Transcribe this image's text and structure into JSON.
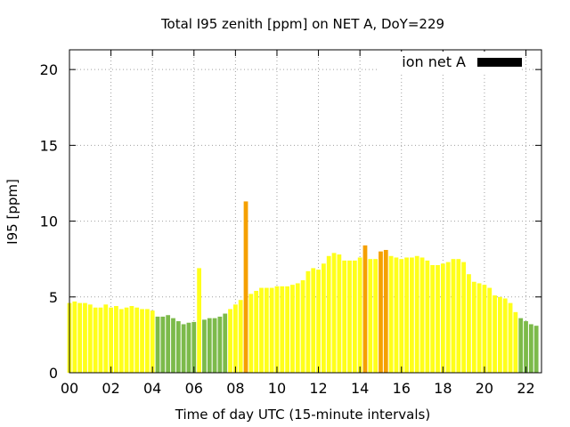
{
  "chart_data": {
    "type": "bar",
    "title": "Total I95 zenith [ppm] on NET A, DoY=229",
    "xlabel": "Time of day UTC (15-minute intervals)",
    "ylabel": "I95 [ppm]",
    "ylim": [
      0,
      21.3
    ],
    "xlim": [
      0,
      22.75
    ],
    "grid": true,
    "legend": {
      "placement": "top-right",
      "entries": [
        {
          "label": "ion net A",
          "color": "#000000"
        }
      ]
    },
    "x_ticks": [
      {
        "value": 0,
        "label": "00"
      },
      {
        "value": 2,
        "label": "02"
      },
      {
        "value": 4,
        "label": "04"
      },
      {
        "value": 6,
        "label": "06"
      },
      {
        "value": 8,
        "label": "08"
      },
      {
        "value": 10,
        "label": "10"
      },
      {
        "value": 12,
        "label": "12"
      },
      {
        "value": 14,
        "label": "14"
      },
      {
        "value": 16,
        "label": "16"
      },
      {
        "value": 18,
        "label": "18"
      },
      {
        "value": 20,
        "label": "20"
      },
      {
        "value": 22,
        "label": "22"
      }
    ],
    "y_ticks": [
      {
        "value": 0,
        "label": "0"
      },
      {
        "value": 5,
        "label": "5"
      },
      {
        "value": 10,
        "label": "10"
      },
      {
        "value": 15,
        "label": "15"
      },
      {
        "value": 20,
        "label": "20"
      }
    ],
    "interval_hours": 0.25,
    "colors": {
      "green": "#7cba4a",
      "yellow": "#ffff1a",
      "orange": "#f5a000"
    },
    "bars": [
      {
        "x": 0.0,
        "value": 4.6,
        "level": "yellow"
      },
      {
        "x": 0.25,
        "value": 4.7,
        "level": "yellow"
      },
      {
        "x": 0.5,
        "value": 4.6,
        "level": "yellow"
      },
      {
        "x": 0.75,
        "value": 4.6,
        "level": "yellow"
      },
      {
        "x": 1.0,
        "value": 4.5,
        "level": "yellow"
      },
      {
        "x": 1.25,
        "value": 4.3,
        "level": "yellow"
      },
      {
        "x": 1.5,
        "value": 4.3,
        "level": "yellow"
      },
      {
        "x": 1.75,
        "value": 4.5,
        "level": "yellow"
      },
      {
        "x": 2.0,
        "value": 4.3,
        "level": "yellow"
      },
      {
        "x": 2.25,
        "value": 4.4,
        "level": "yellow"
      },
      {
        "x": 2.5,
        "value": 4.2,
        "level": "yellow"
      },
      {
        "x": 2.75,
        "value": 4.3,
        "level": "yellow"
      },
      {
        "x": 3.0,
        "value": 4.4,
        "level": "yellow"
      },
      {
        "x": 3.25,
        "value": 4.3,
        "level": "yellow"
      },
      {
        "x": 3.5,
        "value": 4.2,
        "level": "yellow"
      },
      {
        "x": 3.75,
        "value": 4.2,
        "level": "yellow"
      },
      {
        "x": 4.0,
        "value": 4.1,
        "level": "yellow"
      },
      {
        "x": 4.25,
        "value": 3.7,
        "level": "green"
      },
      {
        "x": 4.5,
        "value": 3.7,
        "level": "green"
      },
      {
        "x": 4.75,
        "value": 3.8,
        "level": "green"
      },
      {
        "x": 5.0,
        "value": 3.6,
        "level": "green"
      },
      {
        "x": 5.25,
        "value": 3.4,
        "level": "green"
      },
      {
        "x": 5.5,
        "value": 3.2,
        "level": "green"
      },
      {
        "x": 5.75,
        "value": 3.3,
        "level": "green"
      },
      {
        "x": 6.0,
        "value": 3.35,
        "level": "green"
      },
      {
        "x": 6.25,
        "value": 6.9,
        "level": "yellow"
      },
      {
        "x": 6.5,
        "value": 3.5,
        "level": "green"
      },
      {
        "x": 6.75,
        "value": 3.6,
        "level": "green"
      },
      {
        "x": 7.0,
        "value": 3.6,
        "level": "green"
      },
      {
        "x": 7.25,
        "value": 3.7,
        "level": "green"
      },
      {
        "x": 7.5,
        "value": 3.9,
        "level": "green"
      },
      {
        "x": 7.75,
        "value": 4.2,
        "level": "yellow"
      },
      {
        "x": 8.0,
        "value": 4.5,
        "level": "yellow"
      },
      {
        "x": 8.25,
        "value": 4.8,
        "level": "yellow"
      },
      {
        "x": 8.5,
        "value": 11.3,
        "level": "orange"
      },
      {
        "x": 8.75,
        "value": 5.2,
        "level": "yellow"
      },
      {
        "x": 9.0,
        "value": 5.4,
        "level": "yellow"
      },
      {
        "x": 9.25,
        "value": 5.6,
        "level": "yellow"
      },
      {
        "x": 9.5,
        "value": 5.6,
        "level": "yellow"
      },
      {
        "x": 9.75,
        "value": 5.6,
        "level": "yellow"
      },
      {
        "x": 10.0,
        "value": 5.7,
        "level": "yellow"
      },
      {
        "x": 10.25,
        "value": 5.7,
        "level": "yellow"
      },
      {
        "x": 10.5,
        "value": 5.7,
        "level": "yellow"
      },
      {
        "x": 10.75,
        "value": 5.8,
        "level": "yellow"
      },
      {
        "x": 11.0,
        "value": 5.9,
        "level": "yellow"
      },
      {
        "x": 11.25,
        "value": 6.1,
        "level": "yellow"
      },
      {
        "x": 11.5,
        "value": 6.7,
        "level": "yellow"
      },
      {
        "x": 11.75,
        "value": 6.9,
        "level": "yellow"
      },
      {
        "x": 12.0,
        "value": 6.8,
        "level": "yellow"
      },
      {
        "x": 12.25,
        "value": 7.2,
        "level": "yellow"
      },
      {
        "x": 12.5,
        "value": 7.7,
        "level": "yellow"
      },
      {
        "x": 12.75,
        "value": 7.9,
        "level": "yellow"
      },
      {
        "x": 13.0,
        "value": 7.8,
        "level": "yellow"
      },
      {
        "x": 13.25,
        "value": 7.4,
        "level": "yellow"
      },
      {
        "x": 13.5,
        "value": 7.4,
        "level": "yellow"
      },
      {
        "x": 13.75,
        "value": 7.4,
        "level": "yellow"
      },
      {
        "x": 14.0,
        "value": 7.6,
        "level": "yellow"
      },
      {
        "x": 14.25,
        "value": 8.4,
        "level": "orange"
      },
      {
        "x": 14.5,
        "value": 7.5,
        "level": "yellow"
      },
      {
        "x": 14.75,
        "value": 7.5,
        "level": "yellow"
      },
      {
        "x": 15.0,
        "value": 8.0,
        "level": "orange"
      },
      {
        "x": 15.25,
        "value": 8.1,
        "level": "orange"
      },
      {
        "x": 15.5,
        "value": 7.7,
        "level": "yellow"
      },
      {
        "x": 15.75,
        "value": 7.6,
        "level": "yellow"
      },
      {
        "x": 16.0,
        "value": 7.5,
        "level": "yellow"
      },
      {
        "x": 16.25,
        "value": 7.6,
        "level": "yellow"
      },
      {
        "x": 16.5,
        "value": 7.6,
        "level": "yellow"
      },
      {
        "x": 16.75,
        "value": 7.7,
        "level": "yellow"
      },
      {
        "x": 17.0,
        "value": 7.6,
        "level": "yellow"
      },
      {
        "x": 17.25,
        "value": 7.4,
        "level": "yellow"
      },
      {
        "x": 17.5,
        "value": 7.1,
        "level": "yellow"
      },
      {
        "x": 17.75,
        "value": 7.1,
        "level": "yellow"
      },
      {
        "x": 18.0,
        "value": 7.2,
        "level": "yellow"
      },
      {
        "x": 18.25,
        "value": 7.3,
        "level": "yellow"
      },
      {
        "x": 18.5,
        "value": 7.5,
        "level": "yellow"
      },
      {
        "x": 18.75,
        "value": 7.5,
        "level": "yellow"
      },
      {
        "x": 19.0,
        "value": 7.3,
        "level": "yellow"
      },
      {
        "x": 19.25,
        "value": 6.5,
        "level": "yellow"
      },
      {
        "x": 19.5,
        "value": 6.0,
        "level": "yellow"
      },
      {
        "x": 19.75,
        "value": 5.9,
        "level": "yellow"
      },
      {
        "x": 20.0,
        "value": 5.8,
        "level": "yellow"
      },
      {
        "x": 20.25,
        "value": 5.6,
        "level": "yellow"
      },
      {
        "x": 20.5,
        "value": 5.1,
        "level": "yellow"
      },
      {
        "x": 20.75,
        "value": 5.0,
        "level": "yellow"
      },
      {
        "x": 21.0,
        "value": 4.9,
        "level": "yellow"
      },
      {
        "x": 21.25,
        "value": 4.6,
        "level": "yellow"
      },
      {
        "x": 21.5,
        "value": 4.0,
        "level": "yellow"
      },
      {
        "x": 21.75,
        "value": 3.6,
        "level": "green"
      },
      {
        "x": 22.0,
        "value": 3.4,
        "level": "green"
      },
      {
        "x": 22.25,
        "value": 3.2,
        "level": "green"
      },
      {
        "x": 22.5,
        "value": 3.1,
        "level": "green"
      }
    ]
  }
}
